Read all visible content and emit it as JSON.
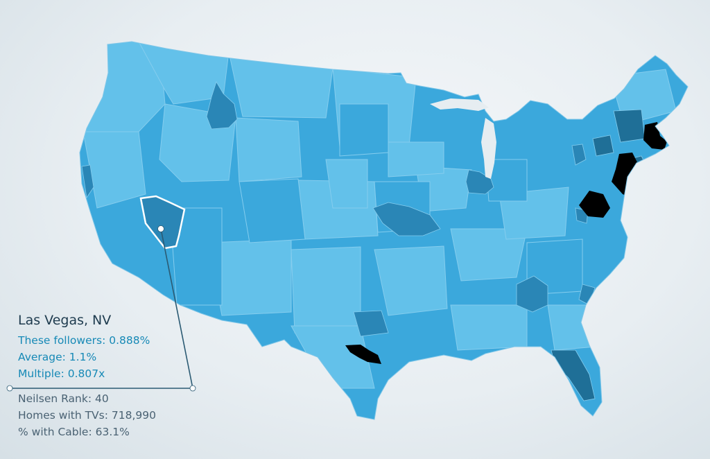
{
  "colors": {
    "background": "#e8eef2",
    "region_light": "#63c1ea",
    "region_mid": "#3ba8dc",
    "region_dark": "#2a86b6",
    "region_darker": "#1f6f97",
    "region_top": "#000000",
    "region_border": "#85cdee",
    "selected_outline": "#ffffff",
    "leader_line": "#2b5a73",
    "highlight_text": "#1689b6",
    "secondary_text": "#4a6273",
    "title_text": "#1e3b4e"
  },
  "tooltip": {
    "market": "Las Vegas, NV",
    "these_followers": "These followers: 0.888%",
    "average": "Average: 1.1%",
    "multiple": "Multiple: 0.807x",
    "neilsen_rank": "Neilsen Rank: 40",
    "homes_with_tvs": "Homes with TVs: 718,990",
    "pct_with_cable": "% with Cable: 63.1%"
  },
  "selected_region": "Las Vegas, NV"
}
